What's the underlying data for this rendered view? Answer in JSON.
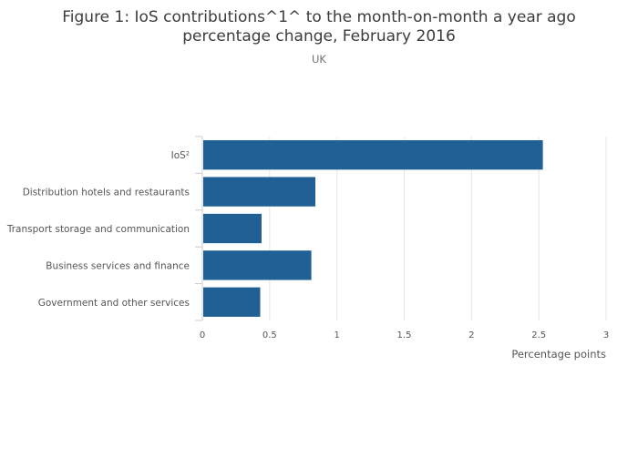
{
  "chart_data": {
    "type": "bar",
    "orientation": "horizontal",
    "title_line1": "Figure 1: IoS contributions^1^ to the month-on-month a year ago",
    "title_line2": "percentage change, February 2016",
    "subtitle": "UK",
    "categories": [
      "IoS²",
      "Distribution hotels and restaurants",
      "Transport storage and communication",
      "Business services and finance",
      "Government and other services"
    ],
    "values": [
      2.53,
      0.84,
      0.44,
      0.81,
      0.43
    ],
    "xlabel": "Percentage points",
    "ylabel": "",
    "xlim": [
      0,
      3
    ],
    "xticks": [
      0,
      0.5,
      1,
      1.5,
      2,
      2.5,
      3
    ],
    "xtick_labels": [
      "0",
      "0.5",
      "1",
      "1.5",
      "2",
      "2.5",
      "3"
    ],
    "grid": true,
    "bar_color": "#206095"
  }
}
